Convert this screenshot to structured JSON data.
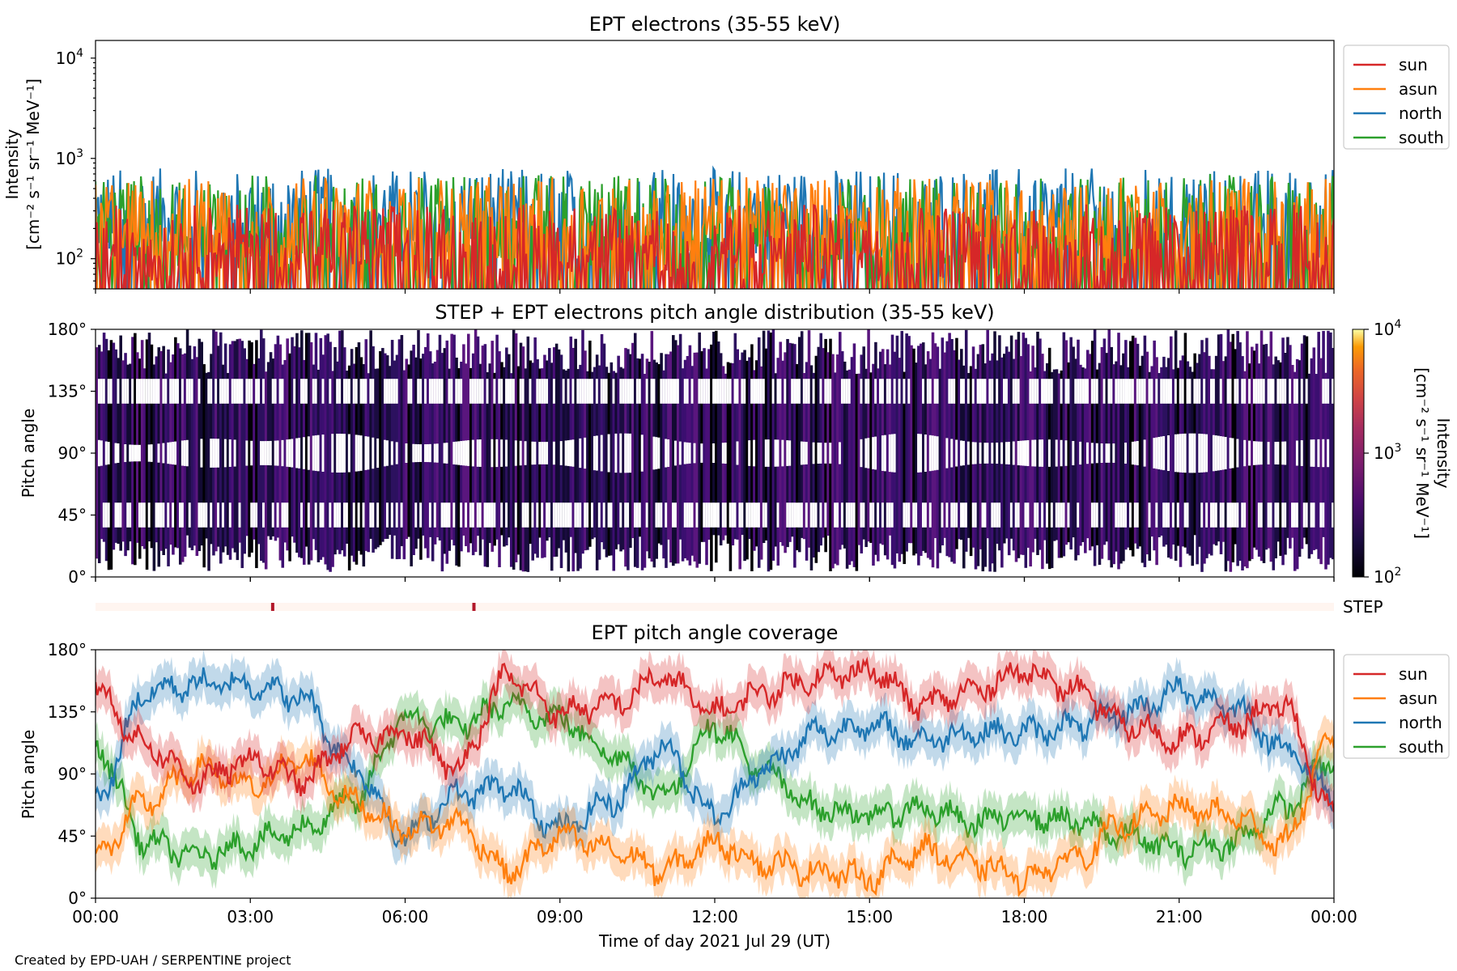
{
  "chart_data": [
    {
      "type": "line",
      "title": "EPT electrons (35-55 keV)",
      "ylabel": "Intensity",
      "ylabel_units": "[cm⁻² s⁻¹ sr⁻¹ MeV⁻¹]",
      "yscale": "log",
      "ylim": [
        50,
        15000
      ],
      "yticks": [
        {
          "value": 100,
          "base": "10",
          "exp": "2"
        },
        {
          "value": 1000,
          "base": "10",
          "exp": "3"
        },
        {
          "value": 10000,
          "base": "10",
          "exp": "4"
        }
      ],
      "xlim_hours": [
        0,
        24
      ],
      "legend": [
        "sun",
        "asun",
        "north",
        "south"
      ],
      "legend_position": "outside-right",
      "series": [
        {
          "name": "sun",
          "color": "#d62728",
          "typical_range": [
            60,
            350
          ]
        },
        {
          "name": "asun",
          "color": "#ff7f0e",
          "typical_range": [
            100,
            650
          ]
        },
        {
          "name": "north",
          "color": "#1f77b4",
          "typical_range": [
            100,
            800
          ]
        },
        {
          "name": "south",
          "color": "#2ca02c",
          "typical_range": [
            80,
            700
          ]
        }
      ]
    },
    {
      "type": "heatmap",
      "title": "STEP + EPT electrons pitch angle distribution (35-55 keV)",
      "ylabel": "Pitch angle",
      "ylim": [
        0,
        180
      ],
      "yticks": [
        "0°",
        "45°",
        "90°",
        "135°",
        "180°"
      ],
      "xlim_hours": [
        0,
        24
      ],
      "colorbar": {
        "label": "Intensity",
        "units": "[cm⁻² s⁻¹ sr⁻¹ MeV⁻¹]",
        "scale": "log",
        "range": [
          100,
          10000
        ],
        "ticks": [
          {
            "base": "10",
            "exp": "2"
          },
          {
            "base": "10",
            "exp": "3"
          },
          {
            "base": "10",
            "exp": "4"
          }
        ]
      }
    },
    {
      "type": "bar",
      "label": "STEP",
      "flag_times": [
        "03:26",
        "07:20"
      ],
      "flag_color": "#b2182b",
      "background_color": "#fff5f0"
    },
    {
      "type": "line",
      "title": "EPT pitch angle coverage",
      "ylabel": "Pitch angle",
      "ylim": [
        0,
        180
      ],
      "yticks": [
        "0°",
        "45°",
        "90°",
        "135°",
        "180°"
      ],
      "xlabel": "Time of day 2021 Jul 29 (UT)",
      "xticks": [
        "00:00",
        "03:00",
        "06:00",
        "09:00",
        "12:00",
        "15:00",
        "18:00",
        "21:00",
        "00:00"
      ],
      "legend": [
        "sun",
        "asun",
        "north",
        "south"
      ],
      "legend_position": "outside-right",
      "series": [
        {
          "name": "sun",
          "color": "#d62728",
          "x": [
            0,
            1,
            2,
            3,
            4,
            5,
            6,
            7,
            8,
            9,
            10,
            11,
            12,
            13,
            14,
            15,
            16,
            17,
            18,
            19,
            20,
            21,
            22,
            23,
            24
          ],
          "y": [
            150,
            110,
            85,
            100,
            85,
            115,
            120,
            95,
            160,
            135,
            140,
            160,
            135,
            150,
            160,
            165,
            140,
            150,
            165,
            150,
            125,
            115,
            125,
            140,
            60
          ]
        },
        {
          "name": "asun",
          "color": "#ff7f0e",
          "x": [
            0,
            1,
            2,
            3,
            4,
            5,
            6,
            7,
            8,
            9,
            10,
            11,
            12,
            13,
            14,
            15,
            16,
            17,
            18,
            19,
            20,
            21,
            22,
            23,
            24
          ],
          "y": [
            30,
            70,
            95,
            80,
            100,
            70,
            50,
            55,
            20,
            45,
            35,
            20,
            40,
            25,
            20,
            15,
            35,
            25,
            15,
            30,
            55,
            65,
            60,
            40,
            115
          ]
        },
        {
          "name": "north",
          "color": "#1f77b4",
          "x": [
            0,
            1,
            2,
            3,
            4,
            5,
            6,
            7,
            8,
            9,
            10,
            11,
            12,
            13,
            14,
            15,
            16,
            17,
            18,
            19,
            20,
            21,
            22,
            23,
            24
          ],
          "y": [
            70,
            150,
            155,
            155,
            145,
            95,
            45,
            75,
            80,
            50,
            70,
            110,
            60,
            95,
            120,
            125,
            115,
            120,
            120,
            125,
            135,
            150,
            140,
            110,
            75
          ]
        },
        {
          "name": "south",
          "color": "#2ca02c",
          "x": [
            0,
            1,
            2,
            3,
            4,
            5,
            6,
            7,
            8,
            9,
            10,
            11,
            12,
            13,
            14,
            15,
            16,
            17,
            18,
            19,
            20,
            21,
            22,
            23,
            24
          ],
          "y": [
            110,
            40,
            30,
            40,
            50,
            70,
            130,
            125,
            140,
            130,
            105,
            75,
            125,
            90,
            65,
            60,
            65,
            55,
            60,
            55,
            45,
            35,
            40,
            65,
            100
          ]
        }
      ]
    }
  ],
  "credit": "Created by EPD-UAH / SERPENTINE project"
}
